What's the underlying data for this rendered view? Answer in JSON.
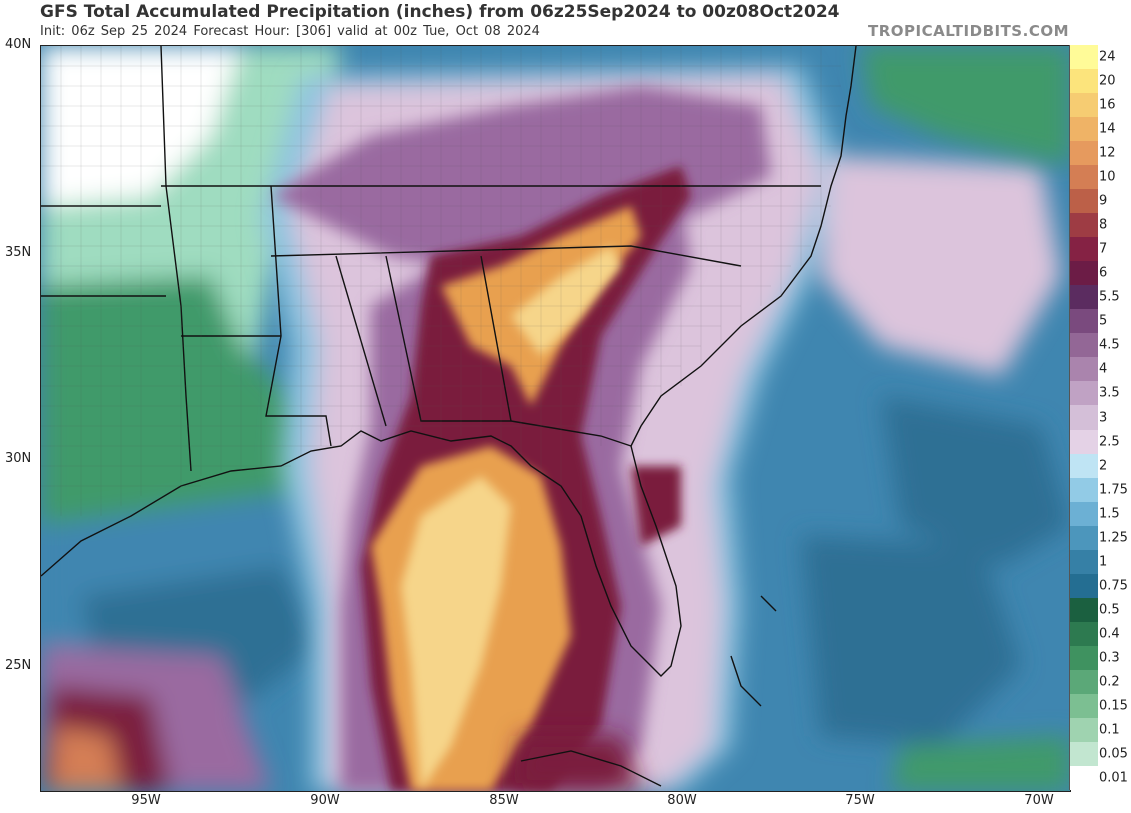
{
  "header": {
    "title": "GFS Total Accumulated Precipitation (inches) from 06z25Sep2024 to 00z08Oct2024",
    "subtitle": "Init: 06z Sep 25 2024   Forecast Hour: [306]   valid at 00z Tue, Oct 08 2024",
    "credit": "TROPICALTIDBITS.COM"
  },
  "map": {
    "lat_labels": [
      "40N",
      "35N",
      "30N",
      "25N"
    ],
    "lon_labels": [
      "95W",
      "90W",
      "85W",
      "80W",
      "75W",
      "70W"
    ],
    "colors": {
      "gulf_heavy": "#e8a050",
      "gulf_core": "#f6d58a",
      "maroon_band": "#7a1e3e",
      "purple_band": "#9a6aa0",
      "lavender": "#dcc4dc",
      "light_blue": "#8fc4e0",
      "atlantic_blue": "#3f86b0",
      "green": "#3f9a6a",
      "light_green": "#9fdcc0"
    }
  },
  "colorbar": {
    "labels": [
      "24",
      "20",
      "16",
      "14",
      "12",
      "10",
      "9",
      "8",
      "7",
      "6",
      "5.5",
      "5",
      "4.5",
      "4",
      "3.5",
      "3",
      "2.5",
      "2",
      "1.75",
      "1.5",
      "1.25",
      "1",
      "0.75",
      "0.5",
      "0.4",
      "0.3",
      "0.2",
      "0.15",
      "0.1",
      "0.05",
      "0.01"
    ],
    "colors": [
      "#fffb98",
      "#fce47c",
      "#f6cc72",
      "#efb366",
      "#e69a5e",
      "#d47e54",
      "#bc6048",
      "#9e3c44",
      "#852244",
      "#6c1c46",
      "#5b2c60",
      "#7a4a7e",
      "#936796",
      "#aa84ad",
      "#c0a2c4",
      "#d4bfd8",
      "#e4d2e6",
      "#bfe4f4",
      "#92cbe6",
      "#6cb0d4",
      "#4c96bc",
      "#3680a6",
      "#246e92",
      "#1b6040",
      "#2d7a50",
      "#3f9260",
      "#5ba878",
      "#7cbf92",
      "#9fd3b0",
      "#c2e6d0",
      "#ffffff"
    ]
  }
}
